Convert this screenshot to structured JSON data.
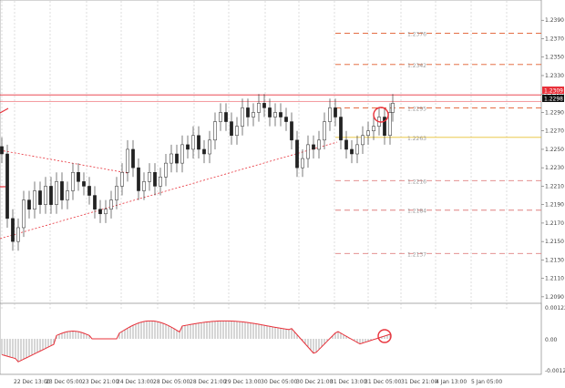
{
  "chart_data": {
    "type": "candlestick",
    "title": "",
    "price_axis": {
      "range": [
        1.208,
        1.241
      ],
      "ticks": [
        "1.2390",
        "1.2370",
        "1.2350",
        "1.2330",
        "1.2310",
        "1.2290",
        "1.2270",
        "1.2250",
        "1.2230",
        "1.2210",
        "1.2190",
        "1.2170",
        "1.2150",
        "1.2130",
        "1.2110",
        "1.2090"
      ],
      "current_price_label": "1.2309",
      "current_price_label_2": "1.2298"
    },
    "time_axis": {
      "ticks": [
        "22 Dec 2020",
        "22 Dec 13:00",
        "23 Dec 05:00",
        "23 Dec 21:00",
        "24 Dec 13:00",
        "28 Dec 05:00",
        "28 Dec 21:00",
        "29 Dec 13:00",
        "30 Dec 05:00",
        "30 Dec 21:00",
        "31 Dec 13:00",
        "31 Dec 05:00",
        "31 Dec 21:00",
        "4 Jan 13:00",
        "5 Jan 05:00",
        "5 Jan 21:00"
      ]
    },
    "fib_levels": [
      {
        "label": "1.2376",
        "value": 1.2376,
        "color": "#e05a2b",
        "style": "dashed"
      },
      {
        "label": "1.2342",
        "value": 1.2342,
        "color": "#e05a2b",
        "style": "dashed"
      },
      {
        "label": "1.2295",
        "value": 1.2295,
        "color": "#e05a2b",
        "style": "dashed"
      },
      {
        "label": "1.2263",
        "value": 1.2263,
        "color": "#e8c030",
        "style": "solid"
      },
      {
        "label": "1.2216",
        "value": 1.2216,
        "color": "#e08080",
        "style": "dashed"
      },
      {
        "label": "1.2184",
        "value": 1.2184,
        "color": "#e08080",
        "style": "dashed"
      },
      {
        "label": "1.2137",
        "value": 1.2137,
        "color": "#e08080",
        "style": "dashed"
      }
    ],
    "resistance_line": 1.2309,
    "oscillator": {
      "ticks": [
        "0.00122",
        "0.00",
        "-0.00128"
      ],
      "range": [
        -0.00128,
        0.00122
      ]
    }
  },
  "colors": {
    "candle": "#222222",
    "resistance": "#e8313a",
    "trendline": "#e8313a",
    "fib_orange": "#e05a2b",
    "fib_yellow": "#e8c030",
    "oscillator_line": "#e8313a",
    "histogram": "#999999"
  }
}
